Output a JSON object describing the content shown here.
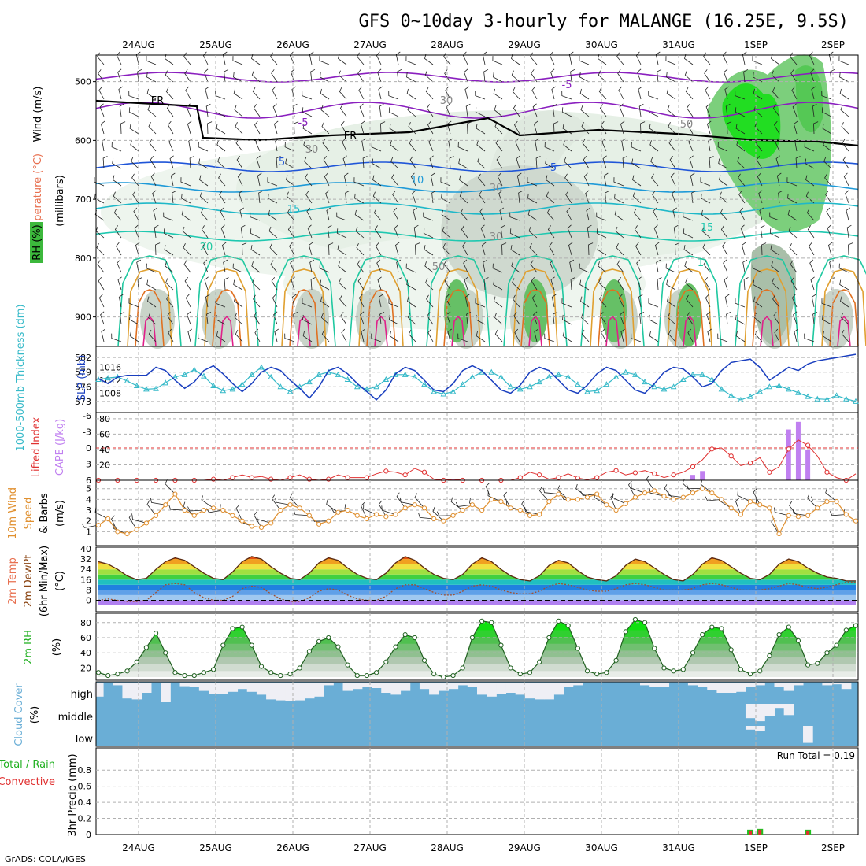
{
  "title": "GFS 0~10day 3-hourly for MALANGE (16.25E, 9.5S)",
  "credit": "GrADS: COLA/IGES",
  "dates": [
    "24AUG",
    "25AUG",
    "26AUG",
    "27AUG",
    "28AUG",
    "29AUG",
    "30AUG",
    "31AUG",
    "1SEP",
    "2SEP"
  ],
  "colors": {
    "frame": "#000000",
    "grid": "#b0b0b0",
    "cloud": "#6aaed6",
    "thick": "#1a3fbf",
    "slp": "#35b9c8",
    "cape": "#c080f0",
    "lifted": "#e03030",
    "wind": "#e09030"
  },
  "panels": {
    "upper": {
      "ylabel_rh": "RH (%)",
      "ylabel_temp": "Temperature (°C)",
      "ylabel_wind": "Wind (m/s)",
      "ylabel_p": "(millibars)",
      "yticks": [
        "500",
        "600",
        "700",
        "800",
        "900"
      ],
      "contour_labels": [
        "-5",
        "-5",
        "5",
        "5",
        "10",
        "15",
        "15",
        "20",
        "FR",
        "FR",
        "30",
        "30",
        "30",
        "50",
        "50",
        "30",
        "1"
      ]
    },
    "thickness": {
      "ylabel_thick": "1000-500mb Thickness (dm)",
      "ylabel_slp": "SLP (mb)",
      "yticks_left": [
        "582",
        "579",
        "576",
        "573"
      ],
      "yticks_right": [
        "1016",
        "1012",
        "1008"
      ]
    },
    "cape": {
      "ylabel_li": "Lifted Index",
      "ylabel_cape": "CAPE (J/kg)",
      "yticks_left": [
        "-6",
        "-3",
        "0",
        "3",
        "6"
      ],
      "yticks_right": [
        "80",
        "60",
        "40",
        "20"
      ]
    },
    "wind10": {
      "ylabel_a": "10m Wind",
      "ylabel_b": "Speed",
      "ylabel_c": "& Barbs",
      "ylabel_unit": "(m/s)",
      "yticks": [
        "5",
        "4",
        "3",
        "2",
        "1"
      ]
    },
    "temp2m": {
      "ylabel_a": "2m Temp",
      "ylabel_b": "2m DewPt",
      "ylabel_c": "(6hr Min/Max)",
      "ylabel_unit": "(°C)",
      "yticks": [
        "40",
        "32",
        "24",
        "16",
        "8",
        "0"
      ]
    },
    "rh2m": {
      "ylabel": "2m RH",
      "ylabel_unit": "(%)",
      "yticks": [
        "80",
        "60",
        "40",
        "20"
      ]
    },
    "cloud": {
      "ylabel": "Cloud Cover",
      "ylabel_unit": "(%)",
      "levels": [
        "high",
        "middle",
        "low"
      ]
    },
    "precip": {
      "ylabel_a": "Total / Rain",
      "ylabel_b": "Convective",
      "ylabel_c": "3hr Precip (mm)",
      "yticks": [
        "0.8",
        "0.6",
        "0.4",
        "0.2",
        "0"
      ],
      "run_total": "Run Total = 0.19"
    }
  },
  "chart_data": [
    {
      "type": "line",
      "panel": "thickness",
      "xlabel": "",
      "series": [
        {
          "name": "1000-500mb Thickness (dm)",
          "values": [
            577.5,
            577.8,
            578,
            577.2,
            576.2,
            575.5,
            575.6,
            576.8,
            578,
            578.5,
            579.5,
            578.2,
            576.2,
            575.2,
            575.5,
            576.5,
            578.5,
            580,
            578,
            576,
            575,
            576,
            577,
            578.5,
            579,
            578.5,
            577.5,
            576,
            575.5,
            576,
            577.5,
            578.5,
            578.5,
            578,
            576.5,
            575,
            574.5,
            575,
            576.5,
            578,
            579,
            579,
            578,
            576,
            575.5,
            576,
            577,
            578,
            578.5,
            578,
            576.5,
            575,
            575.2,
            576.5,
            578,
            579,
            578.5,
            577,
            576,
            575.5,
            576,
            577.5,
            578.5,
            578.5,
            577.5,
            575.5,
            574.2,
            573.3,
            574,
            575,
            576,
            576.2,
            575.5,
            574.8,
            574,
            573.5,
            573.4,
            574.2,
            573.5,
            573
          ]
        },
        {
          "name": "SLP (mb)",
          "values": [
            1012.5,
            1011,
            1013,
            1013.5,
            1013.5,
            1013.5,
            1016,
            1015,
            1012,
            1009.5,
            1011.5,
            1015,
            1016.5,
            1014,
            1011,
            1008.5,
            1011,
            1014.5,
            1016,
            1015,
            1012,
            1009.5,
            1006.5,
            1010,
            1015,
            1016,
            1014,
            1011,
            1008.5,
            1006,
            1009,
            1014,
            1016,
            1015,
            1012,
            1009,
            1008.5,
            1011,
            1015,
            1016.5,
            1015,
            1012,
            1009,
            1008,
            1010.5,
            1014.5,
            1016,
            1015,
            1012,
            1009,
            1008,
            1010.5,
            1014,
            1016,
            1015,
            1012,
            1009,
            1008,
            1011,
            1014.5,
            1016,
            1015.5,
            1013,
            1010,
            1011,
            1015,
            1017.5,
            1018,
            1018.5,
            1016,
            1012,
            1014,
            1016,
            1015,
            1017,
            1018,
            1018.5,
            1019,
            1019.5,
            1020
          ]
        }
      ]
    },
    {
      "type": "bar",
      "panel": "cape",
      "series": [
        {
          "name": "CAPE (J/kg)",
          "values": [
            0,
            0,
            0,
            0,
            0,
            0,
            0,
            0,
            0,
            0,
            0,
            0,
            0,
            0,
            0,
            0,
            0,
            0,
            0,
            0,
            0,
            0,
            0,
            0,
            0,
            0,
            0,
            0,
            0,
            0,
            0,
            0,
            0,
            0,
            0,
            0,
            0,
            2,
            2,
            0,
            0,
            0,
            0,
            0,
            0,
            0,
            0,
            0,
            0,
            0,
            0,
            0,
            0,
            0,
            0,
            0,
            0,
            0,
            0,
            0,
            0,
            0,
            7,
            12,
            0,
            0,
            0,
            0,
            0,
            0,
            0,
            0,
            66,
            76,
            40,
            0,
            0,
            0,
            0,
            0
          ]
        },
        {
          "name": "Lifted Index",
          "values": [
            6,
            6,
            6,
            6,
            6,
            6,
            6,
            6,
            6,
            6,
            6,
            6,
            5.8,
            6,
            5.5,
            5,
            5.5,
            5.3,
            5.8,
            6,
            5.5,
            5,
            5.8,
            6,
            5.8,
            5,
            5.5,
            5.5,
            5.5,
            4.8,
            4.3,
            4.5,
            5,
            3.8,
            4.5,
            5.8,
            6,
            5.8,
            6,
            6,
            6,
            6,
            6,
            6,
            5.5,
            4.5,
            5,
            5.8,
            5.5,
            4.8,
            5.6,
            5.9,
            5.5,
            4.5,
            4.2,
            5,
            4.6,
            4.2,
            4.8,
            5.5,
            5,
            4.5,
            3.5,
            2.2,
            0.2,
            0,
            1.5,
            3.3,
            2.8,
            1.8,
            4.5,
            3.5,
            0.2,
            -1.5,
            -0.5,
            1.5,
            4.5,
            5.5,
            6,
            4.8
          ]
        }
      ]
    },
    {
      "type": "line",
      "panel": "wind10",
      "series": [
        {
          "name": "10m Wind Speed (m/s)",
          "values": [
            1.6,
            2.2,
            1,
            0.8,
            1.2,
            1.8,
            2.5,
            3.5,
            4.5,
            3,
            2.5,
            3,
            3.2,
            3,
            2.5,
            2,
            1.5,
            1.4,
            1.8,
            3,
            3.5,
            3.2,
            2.5,
            1.7,
            2,
            2.8,
            3,
            2.5,
            2.2,
            2.6,
            2.4,
            2.6,
            3.2,
            3.5,
            3.2,
            2.2,
            2,
            2.5,
            3,
            3.5,
            3,
            4,
            3.8,
            3.2,
            3,
            2.5,
            2.6,
            3.8,
            4.5,
            4,
            4,
            4.2,
            4.5,
            3.5,
            3,
            3.6,
            4.2,
            4.6,
            4.8,
            4.3,
            4,
            4.2,
            4.6,
            5,
            4.6,
            4,
            3.2,
            2.6,
            3.8,
            3.5,
            3.2,
            0.8,
            2.5,
            2.4,
            2.5,
            3.2,
            3.8,
            3.8,
            2.6,
            2
          ]
        }
      ]
    },
    {
      "type": "area",
      "panel": "temp2m",
      "series": [
        {
          "name": "2m Temp (°C)",
          "values": [
            30,
            28,
            24,
            19,
            16,
            17,
            24,
            30,
            33,
            31,
            26,
            21,
            17,
            16,
            22,
            30,
            34,
            32,
            26,
            21,
            17,
            16,
            21,
            29,
            33,
            31,
            25,
            20,
            17,
            16,
            21,
            29,
            34,
            31,
            25,
            20,
            17,
            16,
            20,
            28,
            33,
            30,
            24,
            19,
            16,
            15,
            19,
            27,
            31,
            29,
            23,
            18,
            16,
            15,
            19,
            27,
            32,
            30,
            25,
            20,
            16,
            15,
            20,
            28,
            33,
            31,
            26,
            21,
            17,
            16,
            20,
            28,
            32,
            30,
            25,
            21,
            18,
            17,
            15,
            15
          ]
        },
        {
          "name": "2m DewPt (°C)",
          "values": [
            0,
            1,
            0,
            -1,
            -1,
            0,
            6,
            12,
            13,
            12,
            6,
            2,
            0,
            0,
            3,
            9,
            11,
            10,
            5,
            1,
            -1,
            -1,
            2,
            7,
            9,
            8,
            4,
            1,
            0,
            0,
            3,
            9,
            12,
            12,
            9,
            6,
            4,
            4,
            7,
            11,
            12,
            11,
            8,
            6,
            5,
            5,
            7,
            11,
            13,
            12,
            10,
            8,
            7,
            7,
            9,
            12,
            13,
            12,
            10,
            8,
            8,
            8,
            9,
            12,
            13,
            12,
            10,
            8,
            8,
            8,
            9,
            11,
            13,
            12,
            10,
            9,
            10,
            12,
            14,
            14
          ]
        }
      ]
    },
    {
      "type": "area",
      "panel": "rh2m",
      "series": [
        {
          "name": "2m RH (%)",
          "values": [
            14,
            10,
            12,
            16,
            28,
            47,
            66,
            40,
            14,
            10,
            10,
            14,
            18,
            50,
            72,
            74,
            50,
            22,
            14,
            10,
            12,
            20,
            42,
            55,
            60,
            48,
            24,
            10,
            10,
            14,
            28,
            48,
            64,
            60,
            30,
            12,
            8,
            10,
            20,
            60,
            82,
            80,
            50,
            20,
            12,
            14,
            28,
            60,
            82,
            76,
            46,
            16,
            12,
            14,
            30,
            68,
            84,
            80,
            46,
            20,
            16,
            18,
            40,
            64,
            74,
            72,
            44,
            18,
            12,
            16,
            36,
            64,
            74,
            56,
            24,
            26,
            40,
            50,
            70,
            76
          ]
        }
      ]
    },
    {
      "type": "bar",
      "panel": "cloud",
      "series": [
        {
          "name": "high",
          "values": [
            70,
            0,
            10,
            80,
            85,
            50,
            0,
            100,
            0,
            15,
            20,
            40,
            55,
            55,
            45,
            30,
            45,
            60,
            85,
            90,
            95,
            90,
            80,
            70,
            10,
            0,
            40,
            30,
            20,
            25,
            50,
            60,
            40,
            0,
            30,
            60,
            40,
            30,
            10,
            20,
            60,
            70,
            55,
            50,
            60,
            80,
            85,
            85,
            60,
            20,
            10,
            0,
            0,
            0,
            0,
            0,
            0,
            10,
            20,
            20,
            0,
            0,
            10,
            20,
            35,
            50,
            50,
            45,
            20,
            10,
            0,
            20,
            40,
            10,
            0,
            0,
            10,
            5,
            30,
            0
          ]
        },
        {
          "name": "middle",
          "values": [
            0,
            0,
            0,
            0,
            0,
            0,
            0,
            0,
            0,
            0,
            0,
            0,
            0,
            0,
            0,
            0,
            0,
            0,
            0,
            0,
            0,
            0,
            0,
            0,
            0,
            0,
            0,
            0,
            0,
            0,
            0,
            0,
            0,
            0,
            0,
            0,
            0,
            0,
            0,
            0,
            0,
            0,
            0,
            0,
            0,
            0,
            0,
            0,
            0,
            0,
            0,
            0,
            0,
            0,
            0,
            0,
            0,
            0,
            0,
            0,
            0,
            0,
            0,
            0,
            0,
            0,
            0,
            0,
            70,
            85,
            60,
            20,
            55,
            0,
            0,
            0,
            0,
            0,
            0,
            0
          ]
        },
        {
          "name": "low",
          "values": [
            0,
            0,
            0,
            0,
            0,
            0,
            0,
            0,
            0,
            0,
            0,
            0,
            0,
            0,
            0,
            0,
            0,
            0,
            0,
            0,
            0,
            0,
            0,
            0,
            0,
            0,
            0,
            0,
            0,
            0,
            0,
            0,
            0,
            0,
            0,
            0,
            0,
            0,
            0,
            0,
            0,
            0,
            0,
            0,
            0,
            0,
            0,
            0,
            0,
            0,
            0,
            0,
            0,
            0,
            0,
            0,
            0,
            0,
            0,
            0,
            0,
            0,
            0,
            0,
            0,
            0,
            0,
            0,
            20,
            25,
            0,
            0,
            0,
            0,
            90,
            0,
            0,
            0,
            0,
            0
          ]
        }
      ]
    },
    {
      "type": "bar",
      "panel": "precip",
      "series": [
        {
          "name": "3hr Precip (mm)",
          "values": [
            0,
            0,
            0,
            0,
            0,
            0,
            0,
            0,
            0,
            0,
            0,
            0,
            0,
            0,
            0,
            0,
            0,
            0,
            0,
            0,
            0,
            0,
            0,
            0,
            0,
            0,
            0,
            0,
            0,
            0,
            0,
            0,
            0,
            0,
            0,
            0,
            0,
            0,
            0,
            0,
            0,
            0,
            0,
            0,
            0,
            0,
            0,
            0,
            0,
            0,
            0,
            0,
            0,
            0,
            0,
            0,
            0,
            0,
            0,
            0,
            0,
            0,
            0,
            0,
            0,
            0,
            0,
            0,
            0.06,
            0.07,
            0,
            0,
            0,
            0,
            0.06,
            0,
            0,
            0,
            0,
            0
          ]
        }
      ]
    }
  ]
}
